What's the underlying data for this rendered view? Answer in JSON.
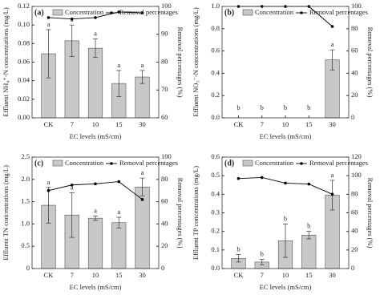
{
  "chart_data": [
    {
      "type": "bar",
      "label": "(a)",
      "x_label": "EC levels (mS/cm)",
      "y_label": "Effluent NH₄⁺-N concentrations (mg/L)",
      "y2_label": "Removal percentages (%)",
      "categories": [
        "CK",
        "7",
        "10",
        "15",
        "30"
      ],
      "series": [
        {
          "name": "Concentration",
          "color": "#c8c8c8",
          "values": [
            0.069,
            0.083,
            0.075,
            0.037,
            0.044
          ],
          "errors": [
            0.026,
            0.017,
            0.01,
            0.014,
            0.007
          ],
          "letters": [
            "a",
            "a",
            "a",
            "a",
            "a"
          ]
        },
        {
          "name": "Removal percentages",
          "color": "#000000",
          "type": "line",
          "axis": "y2",
          "values": [
            96,
            95.5,
            96,
            98,
            97.7
          ]
        }
      ],
      "ylim": [
        0,
        0.12
      ],
      "yticks": [
        {
          "value": 0,
          "label": "0.00"
        },
        0.02,
        0.04,
        0.06,
        0.08,
        {
          "value": 0.1,
          "label": "0.10"
        },
        0.12
      ],
      "y2lim": [
        60,
        100
      ],
      "y2ticks": [
        60,
        70,
        80,
        90,
        100
      ]
    },
    {
      "type": "bar",
      "label": "(b)",
      "x_label": "EC levels (mS/cm)",
      "y_label": "Effluent NO₃⁻-N concentrations (mg/L)",
      "y2_label": "Removal percentages (%)",
      "categories": [
        "CK",
        "7",
        "10",
        "15",
        "30"
      ],
      "series": [
        {
          "name": "Concentration",
          "color": "#c8c8c8",
          "values": [
            0,
            0,
            0,
            0,
            0.52
          ],
          "errors": [
            0,
            0,
            0,
            0,
            0.09
          ],
          "letters": [
            "b",
            "b",
            "b",
            "b",
            "a"
          ]
        },
        {
          "name": "Removal percentages",
          "color": "#000000",
          "type": "line",
          "axis": "y2",
          "values": [
            100,
            100,
            100,
            100,
            82
          ]
        }
      ],
      "ylim": [
        0,
        1
      ],
      "yticks": [
        {
          "value": 0,
          "label": "0.0"
        },
        0.2,
        0.4,
        0.6,
        0.8,
        {
          "value": 1,
          "label": "1.0"
        }
      ],
      "y2lim": [
        0,
        100
      ],
      "y2ticks": [
        0,
        20,
        40,
        60,
        80,
        100
      ]
    },
    {
      "type": "bar",
      "label": "(c)",
      "x_label": "EC levels (mS/cm)",
      "y_label": "Effluent TN concentrations (mg/L)",
      "y2_label": "Removal percentages (%)",
      "categories": [
        "CK",
        "7",
        "10",
        "15",
        "30"
      ],
      "series": [
        {
          "name": "Concentration",
          "color": "#c8c8c8",
          "values": [
            1.42,
            1.2,
            1.13,
            1.03,
            1.83
          ],
          "errors": [
            0.4,
            0.5,
            0.05,
            0.12,
            0.2
          ],
          "letters": [
            "a",
            "a",
            "a",
            "a",
            "a"
          ]
        },
        {
          "name": "Removal percentages",
          "color": "#000000",
          "type": "line",
          "axis": "y2",
          "values": [
            70,
            75,
            76,
            78,
            62
          ]
        }
      ],
      "ylim": [
        0,
        2.5
      ],
      "yticks": [
        0,
        0.5,
        {
          "value": 1,
          "label": "1.0"
        },
        1.5,
        {
          "value": 2,
          "label": "2.0"
        },
        2.5
      ],
      "y2lim": [
        0,
        100
      ],
      "y2ticks": [
        0,
        20,
        40,
        60,
        80,
        100
      ]
    },
    {
      "type": "bar",
      "label": "(d)",
      "x_label": "EC levels (mS/cm)",
      "y_label": "Effluent TP concentrations (mg/L)",
      "y2_label": "Removal percentages (%)",
      "categories": [
        "CK",
        "7",
        "10",
        "15",
        "30"
      ],
      "series": [
        {
          "name": "Concentration",
          "color": "#c8c8c8",
          "values": [
            0.055,
            0.035,
            0.15,
            0.18,
            0.395
          ],
          "errors": [
            0.02,
            0.015,
            0.09,
            0.02,
            0.08
          ],
          "letters": [
            "b",
            "b",
            "b",
            "b",
            "a"
          ]
        },
        {
          "name": "Removal percentages",
          "color": "#000000",
          "type": "line",
          "axis": "y2",
          "values": [
            97,
            98,
            92,
            91,
            80
          ]
        }
      ],
      "ylim": [
        0,
        0.6
      ],
      "yticks": [
        {
          "value": 0,
          "label": "0.0"
        },
        0.1,
        0.2,
        0.3,
        0.4,
        0.5,
        0.6
      ],
      "y2lim": [
        0,
        120
      ],
      "y2ticks": [
        0,
        20,
        40,
        60,
        80,
        100,
        120
      ]
    }
  ]
}
